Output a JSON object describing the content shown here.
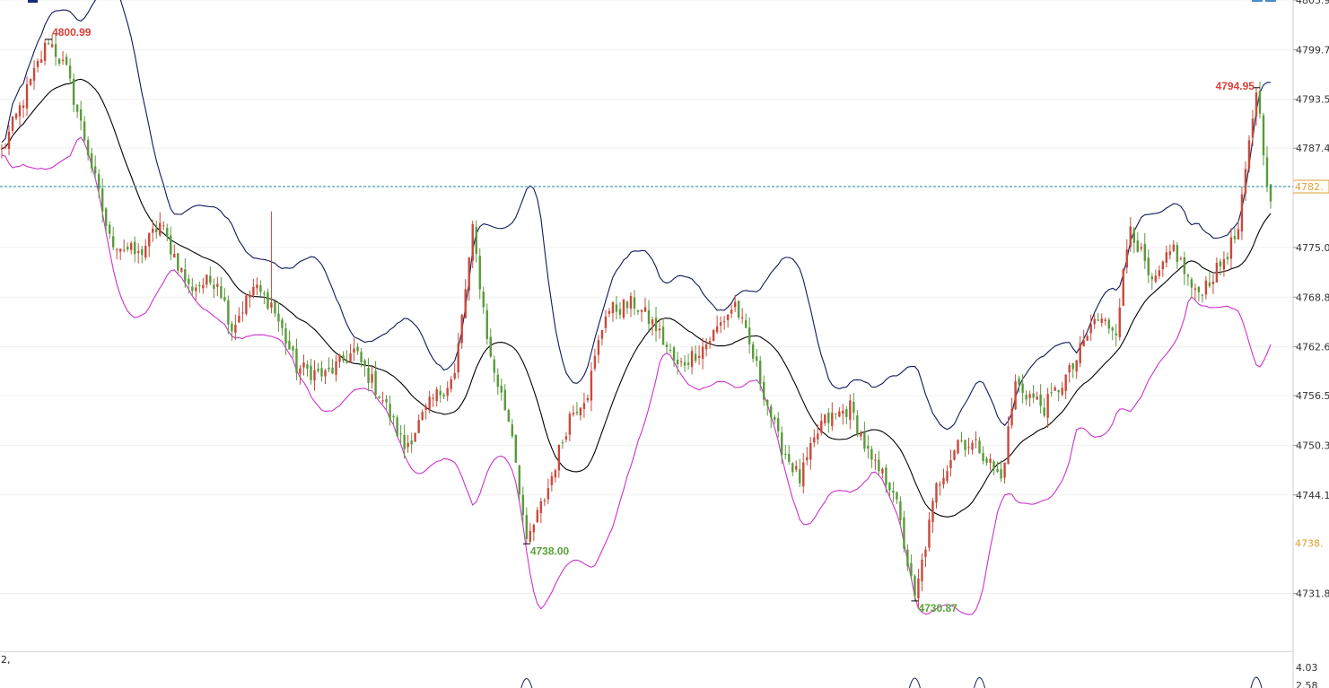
{
  "chart_data": {
    "type": "candlestick",
    "y_axis": {
      "ylim": [
        4727.5,
        4805.9
      ],
      "ticks": [
        "4805.9",
        "4799.7",
        "4793.5",
        "4787.4",
        "4775.0",
        "4768.8",
        "4762.6",
        "4756.5",
        "4750.3",
        "4744.1",
        "4731.8"
      ],
      "tick_values": [
        4805.9,
        4799.7,
        4793.5,
        4787.4,
        4775.0,
        4768.8,
        4762.6,
        4756.5,
        4750.3,
        4744.1,
        4731.8
      ]
    },
    "current_price": {
      "value": 4782.6,
      "label": "4782.",
      "color": "#e0a030"
    },
    "secondary_price": {
      "value": 4738.1,
      "label": "4738.",
      "color": "#e0a030"
    },
    "annotations": [
      {
        "label": "4800.99",
        "kind": "high",
        "price": 4800.99,
        "bar": 13
      },
      {
        "label": "4738.00",
        "kind": "low",
        "price": 4738.0,
        "bar": 146
      },
      {
        "label": "4730.87",
        "kind": "low",
        "price": 4730.87,
        "bar": 254
      },
      {
        "label": "4794.95",
        "kind": "high",
        "price": 4794.95,
        "bar": 349
      }
    ],
    "anchors": [
      [
        0,
        4787
      ],
      [
        13,
        4800.99
      ],
      [
        18,
        4797
      ],
      [
        24,
        4787
      ],
      [
        30,
        4776
      ],
      [
        38,
        4774
      ],
      [
        44,
        4778
      ],
      [
        52,
        4770
      ],
      [
        60,
        4771
      ],
      [
        64,
        4765
      ],
      [
        70,
        4770
      ],
      [
        75,
        4768
      ],
      [
        82,
        4760
      ],
      [
        90,
        4759
      ],
      [
        98,
        4762
      ],
      [
        106,
        4756
      ],
      [
        112,
        4750
      ],
      [
        120,
        4756
      ],
      [
        126,
        4759
      ],
      [
        131,
        4777
      ],
      [
        136,
        4761
      ],
      [
        142,
        4752
      ],
      [
        146,
        4738.0
      ],
      [
        152,
        4745
      ],
      [
        158,
        4754
      ],
      [
        163,
        4757
      ],
      [
        168,
        4767
      ],
      [
        176,
        4768
      ],
      [
        182,
        4765
      ],
      [
        188,
        4760
      ],
      [
        196,
        4763
      ],
      [
        204,
        4768
      ],
      [
        210,
        4760
      ],
      [
        216,
        4751
      ],
      [
        222,
        4746
      ],
      [
        228,
        4753
      ],
      [
        236,
        4755
      ],
      [
        242,
        4748
      ],
      [
        248,
        4745
      ],
      [
        254,
        4730.87
      ],
      [
        260,
        4745
      ],
      [
        266,
        4751
      ],
      [
        272,
        4750
      ],
      [
        278,
        4746
      ],
      [
        282,
        4758
      ],
      [
        290,
        4755
      ],
      [
        298,
        4760
      ],
      [
        304,
        4766
      ],
      [
        310,
        4765
      ],
      [
        314,
        4778
      ],
      [
        320,
        4770
      ],
      [
        326,
        4775
      ],
      [
        332,
        4769
      ],
      [
        338,
        4772
      ],
      [
        344,
        4777
      ],
      [
        349,
        4794.95
      ],
      [
        353,
        4780
      ]
    ],
    "bar_count": 354,
    "colors": {
      "up": "#c84a3c",
      "down": "#5a9a3c",
      "upper_band": "#101a5a",
      "middle_band": "#000000",
      "lower_band": "#cc33cc",
      "price_line": "#1a8a9a"
    },
    "indicator": {
      "label": "2,",
      "ticks": [
        "4.03",
        "2.58"
      ],
      "tick_values": [
        4.03,
        2.58
      ]
    }
  }
}
